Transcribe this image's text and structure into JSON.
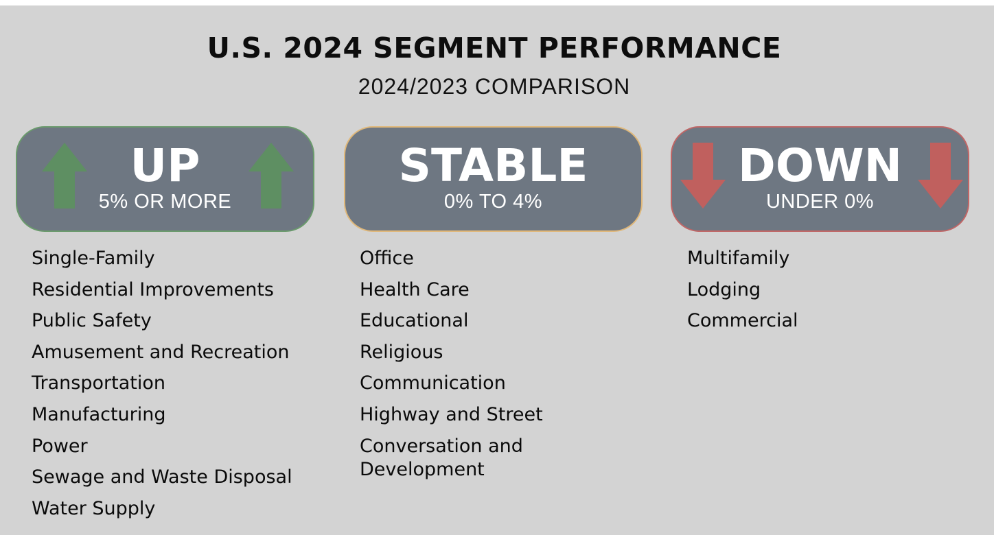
{
  "title": "U.S. 2024 SEGMENT PERFORMANCE",
  "subtitle": "2024/2023 COMPARISON",
  "colors": {
    "background": "#d3d3d3",
    "card": "#6e7782",
    "up_accent": "#5e8f62",
    "stable_accent": "#e0b87a",
    "down_accent": "#c0605e"
  },
  "columns": [
    {
      "heading": "UP",
      "subheading": "5% OR MORE",
      "icon": "arrow-up-icon",
      "items": [
        "Single-Family",
        "Residential Improvements",
        "Public Safety",
        "Amusement and Recreation",
        "Transportation",
        "Manufacturing",
        "Power",
        "Sewage and Waste Disposal",
        "Water Supply"
      ]
    },
    {
      "heading": "STABLE",
      "subheading": "0% TO 4%",
      "icon": "",
      "items": [
        "Office",
        "Health Care",
        "Educational",
        "Religious",
        "Communication",
        "Highway and Street",
        "Conversation and Development"
      ]
    },
    {
      "heading": "DOWN",
      "subheading": "UNDER 0%",
      "icon": "arrow-down-icon",
      "items": [
        "Multifamily",
        "Lodging",
        "Commercial"
      ]
    }
  ]
}
